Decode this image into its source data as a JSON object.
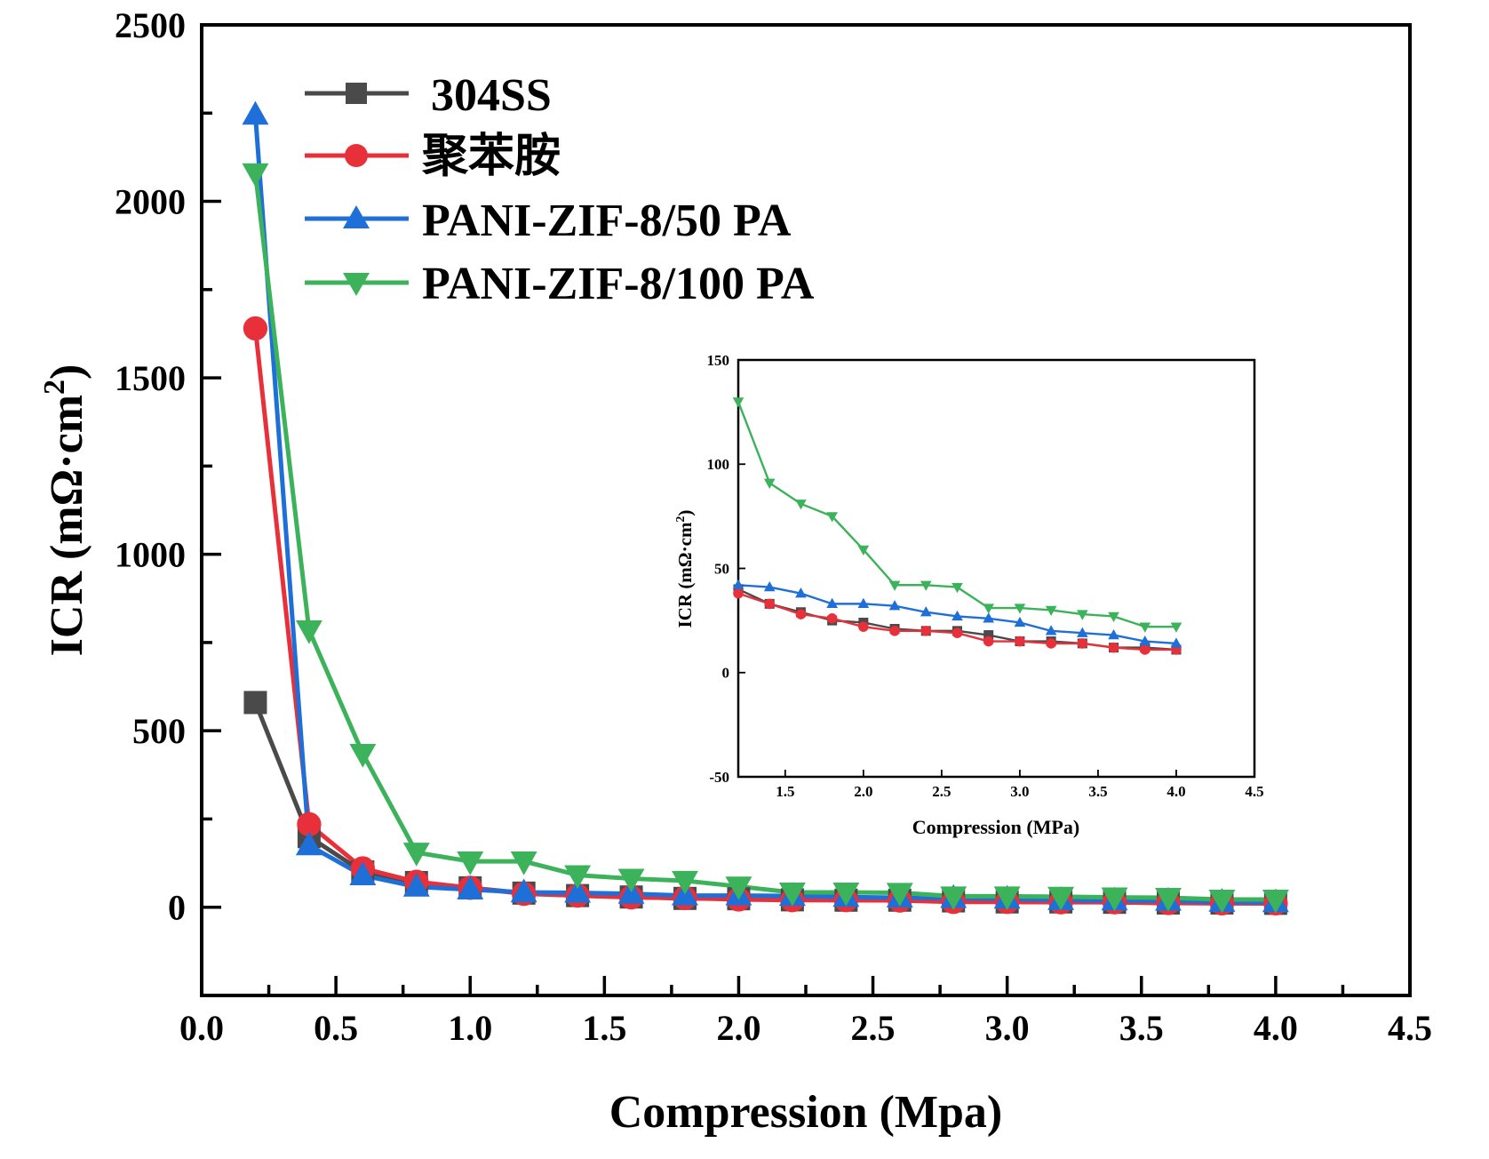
{
  "chart_data": [
    {
      "type": "line",
      "role": "main",
      "xlabel": "Compression (Mpa)",
      "ylabel_main": "ICR (mΩ·cm",
      "ylabel_sup": "2",
      "ylabel_close": ")",
      "xlim": [
        0.0,
        4.5
      ],
      "ylim": [
        -250,
        2500
      ],
      "xticks": [
        0.0,
        0.5,
        1.0,
        1.5,
        2.0,
        2.5,
        3.0,
        3.5,
        4.0,
        4.5
      ],
      "xtick_labels": [
        "0.0",
        "0.5",
        "1.0",
        "1.5",
        "2.0",
        "2.5",
        "3.0",
        "3.5",
        "4.0",
        "4.5"
      ],
      "yticks": [
        0,
        500,
        1000,
        1500,
        2000,
        2500
      ],
      "ytick_labels": [
        "0",
        "500",
        "1000",
        "1500",
        "2000",
        "2500"
      ],
      "legend_position": "top-left",
      "x": [
        0.2,
        0.4,
        0.6,
        0.8,
        1.0,
        1.2,
        1.4,
        1.6,
        1.8,
        2.0,
        2.2,
        2.4,
        2.6,
        2.8,
        3.0,
        3.2,
        3.4,
        3.6,
        3.8,
        4.0
      ],
      "series": [
        {
          "name": "304SS",
          "color": "#4a4a4a",
          "marker": "square",
          "values": [
            580,
            200,
            100,
            70,
            55,
            40,
            33,
            29,
            25,
            24,
            21,
            20,
            20,
            18,
            15,
            15,
            14,
            12,
            12,
            11
          ]
        },
        {
          "name": "聚苯胺",
          "color": "#e8303a",
          "marker": "circle",
          "values": [
            1640,
            235,
            110,
            72,
            55,
            38,
            33,
            28,
            26,
            22,
            20,
            20,
            19,
            15,
            15,
            14,
            14,
            12,
            11,
            11
          ]
        },
        {
          "name": "PANI-ZIF-8/50 PA",
          "color": "#1f6fd8",
          "marker": "triangle-up",
          "values": [
            2245,
            175,
            90,
            58,
            50,
            42,
            41,
            38,
            33,
            33,
            32,
            29,
            27,
            26,
            24,
            20,
            19,
            18,
            15,
            14
          ]
        },
        {
          "name": "PANI-ZIF-8/100 PA",
          "color": "#3cb25b",
          "marker": "triangle-down",
          "values": [
            2080,
            785,
            435,
            155,
            130,
            130,
            91,
            81,
            75,
            59,
            42,
            42,
            41,
            31,
            31,
            30,
            28,
            27,
            22,
            22
          ]
        }
      ]
    },
    {
      "type": "line",
      "role": "inset",
      "xlabel": "Compression (MPa)",
      "ylabel_main": "ICR (mΩ·cm",
      "ylabel_sup": "2",
      "ylabel_close": ")",
      "xlim": [
        1.2,
        4.5
      ],
      "ylim": [
        -50,
        150
      ],
      "xticks": [
        1.5,
        2.0,
        2.5,
        3.0,
        3.5,
        4.0,
        4.5
      ],
      "xtick_labels": [
        "1.5",
        "2.0",
        "2.5",
        "3.0",
        "3.5",
        "4.0",
        "4.5"
      ],
      "yticks": [
        -50,
        0,
        50,
        100,
        150
      ],
      "ytick_labels": [
        "-50",
        "0",
        "50",
        "100",
        "150"
      ],
      "x": [
        1.2,
        1.4,
        1.6,
        1.8,
        2.0,
        2.2,
        2.4,
        2.6,
        2.8,
        3.0,
        3.2,
        3.4,
        3.6,
        3.8,
        4.0
      ],
      "series": [
        {
          "name": "304SS",
          "color": "#4a4a4a",
          "marker": "square",
          "values": [
            40,
            33,
            29,
            25,
            24,
            21,
            20,
            20,
            18,
            15,
            15,
            14,
            12,
            12,
            11
          ]
        },
        {
          "name": "聚苯胺",
          "color": "#e8303a",
          "marker": "circle",
          "values": [
            38,
            33,
            28,
            26,
            22,
            20,
            20,
            19,
            15,
            15,
            14,
            14,
            12,
            11,
            11
          ]
        },
        {
          "name": "PANI-ZIF-8/50 PA",
          "color": "#1f6fd8",
          "marker": "triangle-up",
          "values": [
            42,
            41,
            38,
            33,
            33,
            32,
            29,
            27,
            26,
            24,
            20,
            19,
            18,
            15,
            14
          ]
        },
        {
          "name": "PANI-ZIF-8/100 PA",
          "color": "#3cb25b",
          "marker": "triangle-down",
          "values": [
            130,
            91,
            81,
            75,
            59,
            42,
            42,
            41,
            31,
            31,
            30,
            28,
            27,
            22,
            22
          ]
        }
      ]
    }
  ]
}
